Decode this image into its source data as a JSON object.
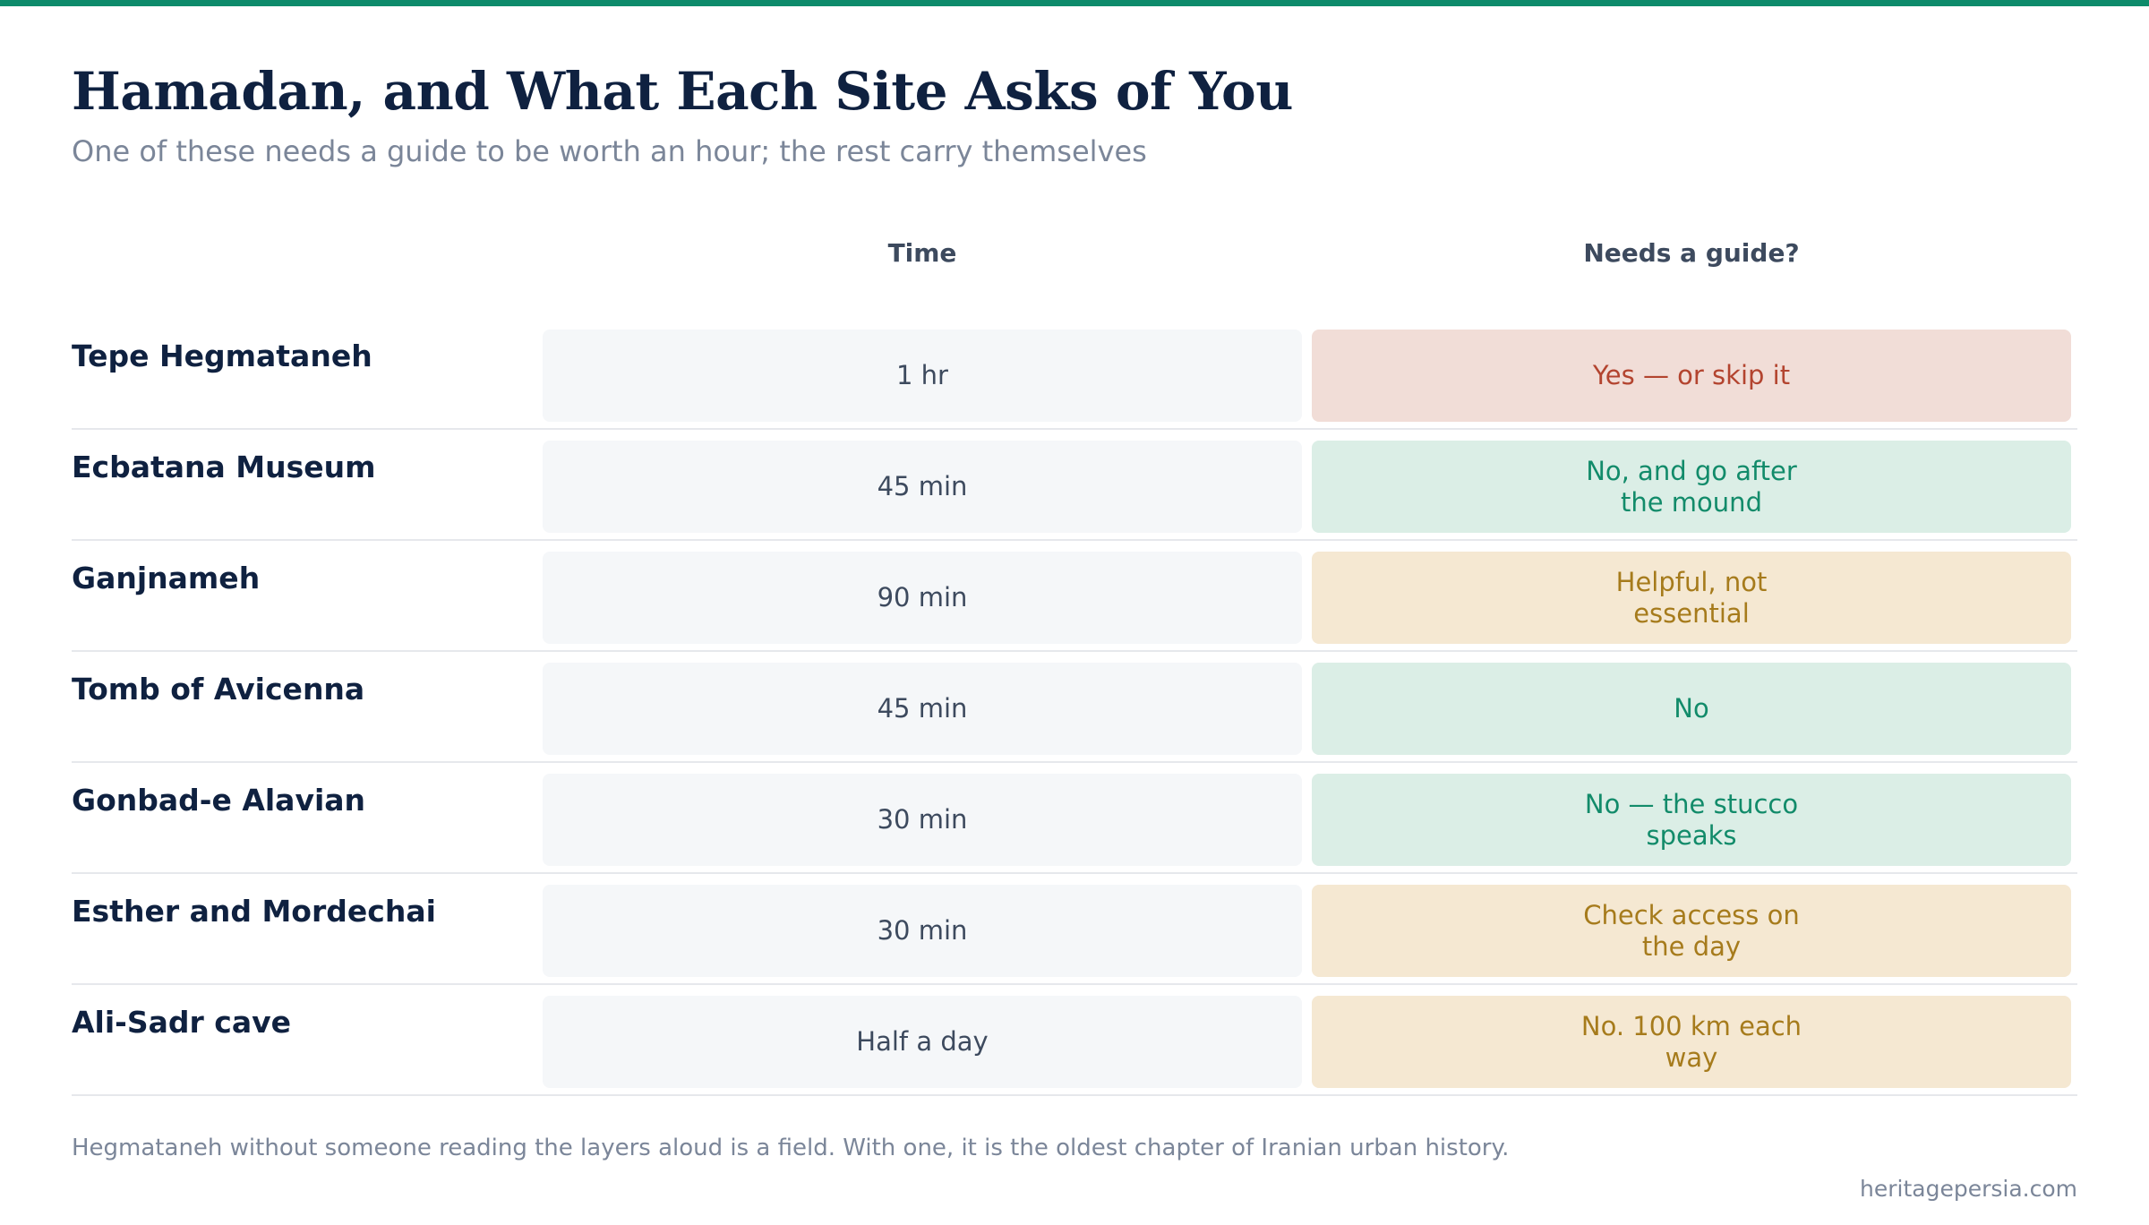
{
  "header": {
    "title": "Hamadan, and What Each Site Asks of You",
    "subtitle": "One of these needs a guide to be worth an hour; the rest carry themselves"
  },
  "columns": {
    "time": "Time",
    "guide": "Needs a guide?"
  },
  "rows": [
    {
      "site": "Tepe Hegmataneh",
      "time": "1 hr",
      "guide": "Yes — or skip it",
      "guide_status": "yes"
    },
    {
      "site": "Ecbatana Museum",
      "time": "45 min",
      "guide": "No, and go after the mound",
      "guide_status": "no"
    },
    {
      "site": "Ganjnameh",
      "time": "90 min",
      "guide": "Helpful, not essential",
      "guide_status": "maybe"
    },
    {
      "site": "Tomb of Avicenna",
      "time": "45 min",
      "guide": "No",
      "guide_status": "no"
    },
    {
      "site": "Gonbad-e Alavian",
      "time": "30 min",
      "guide": "No — the stucco speaks",
      "guide_status": "no"
    },
    {
      "site": "Esther and Mordechai",
      "time": "30 min",
      "guide": "Check access on the day",
      "guide_status": "maybe"
    },
    {
      "site": "Ali-Sadr cave",
      "time": "Half a day",
      "guide": "No. 100 km each way",
      "guide_status": "maybe"
    }
  ],
  "footer": {
    "note": "Hegmataneh without someone reading the layers aloud is a field. With one, it is the oldest chapter of Iranian urban history.",
    "source": "heritagepersia.com"
  },
  "colors": {
    "accent": "#0e8b6b",
    "yes_bg": "#f1ddd7",
    "yes_text": "#b3442f",
    "no_bg": "#dbeee6",
    "no_text": "#128b6a",
    "maybe_bg": "#f5e8d2",
    "maybe_text": "#a67b1c"
  }
}
